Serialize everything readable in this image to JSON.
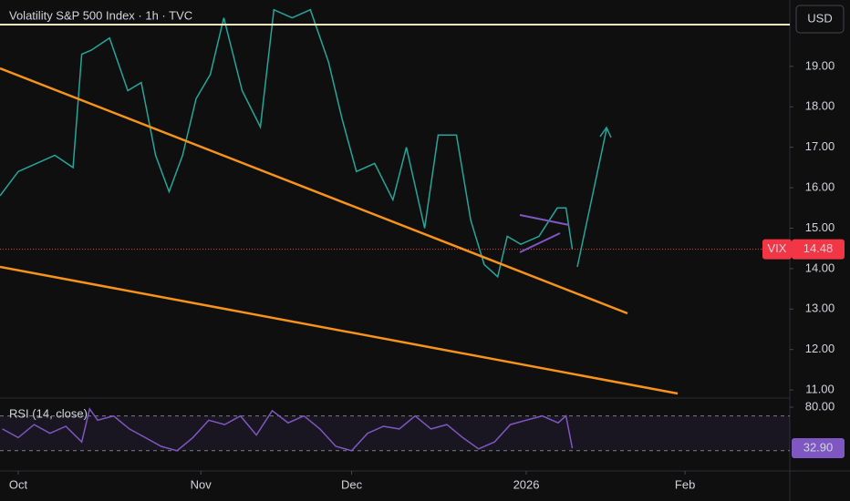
{
  "chart_data": [
    {
      "type": "line",
      "title": "Volatility S&P 500 Index · 1h · TVC",
      "currency": "USD",
      "x": [
        -2.3,
        0,
        2.3,
        4.6,
        6.9,
        8,
        9.2,
        11.5,
        13.8,
        15.5,
        17.3,
        19,
        20.7,
        22.4,
        24.2,
        25.9,
        28.2,
        30.5,
        32.2,
        34.5,
        36.8,
        39.1,
        40.8,
        42.6,
        44.9,
        47.2,
        48.9,
        51.2,
        52.9,
        55.2,
        57,
        58.7,
        60.4,
        61.6,
        63.3,
        65.6,
        67.9,
        69,
        69.8
      ],
      "series": [
        {
          "name": "VIX",
          "color": "#26a69a",
          "values": [
            15.8,
            16.4,
            16.6,
            16.8,
            16.5,
            19.3,
            19.4,
            19.7,
            18.4,
            18.6,
            16.8,
            15.9,
            16.8,
            18.2,
            18.8,
            20.2,
            18.4,
            17.5,
            20.4,
            20.2,
            20.4,
            19.1,
            17.7,
            16.4,
            16.6,
            15.7,
            17.0,
            15.0,
            17.3,
            17.3,
            15.2,
            14.1,
            13.8,
            14.8,
            14.6,
            14.8,
            15.5,
            15.5,
            14.48
          ]
        }
      ],
      "last_price": {
        "value": 14.48,
        "label": "14.48"
      },
      "last_color": "#f23645",
      "xlim": [
        -2.3,
        97.2
      ],
      "xticks": [
        {
          "value": 0,
          "label": "Oct"
        },
        {
          "value": 23,
          "label": "Nov"
        },
        {
          "value": 42,
          "label": "Dec"
        },
        {
          "value": 64,
          "label": "2026"
        },
        {
          "value": 84,
          "label": "Feb"
        }
      ],
      "ylim": [
        10.8,
        20.64
      ],
      "yticks": [
        {
          "value": 11,
          "label": "11.00"
        },
        {
          "value": 12,
          "label": "12.00"
        },
        {
          "value": 13,
          "label": "13.00"
        },
        {
          "value": 14,
          "label": "14.00"
        },
        {
          "value": 15,
          "label": "15.00"
        },
        {
          "value": 16,
          "label": "16.00"
        },
        {
          "value": 17,
          "label": "17.00"
        },
        {
          "value": 18,
          "label": "18.00"
        },
        {
          "value": 19,
          "label": "19.00"
        }
      ]
    },
    {
      "type": "line",
      "title": "RSI (14, close)",
      "x": [
        -2,
        0,
        2,
        4,
        6,
        8,
        9,
        10,
        12,
        14,
        16,
        18,
        20,
        22,
        24,
        26,
        28,
        30,
        32,
        34,
        36,
        38,
        40,
        42,
        44,
        46,
        48,
        50,
        52,
        54,
        56,
        58,
        60,
        62,
        64,
        66,
        68,
        69,
        69.8
      ],
      "series": [
        {
          "name": "RSI",
          "color": "#7e57c2",
          "values": [
            55,
            45,
            60,
            50,
            58,
            40,
            78,
            65,
            70,
            55,
            45,
            35,
            30,
            45,
            65,
            60,
            70,
            48,
            76,
            62,
            70,
            55,
            35,
            30,
            50,
            58,
            55,
            70,
            55,
            60,
            45,
            32,
            40,
            60,
            65,
            70,
            62,
            70,
            32.9
          ]
        }
      ],
      "last_price": {
        "value": 32.9,
        "label": "32.90"
      },
      "last_color": "#7e57c2",
      "bands": [
        70,
        30
      ],
      "xlim": [
        -2.3,
        97.2
      ],
      "ylim": [
        6.7,
        90.5
      ],
      "yticks": [
        {
          "value": 80,
          "label": "80.00"
        }
      ]
    }
  ]
}
